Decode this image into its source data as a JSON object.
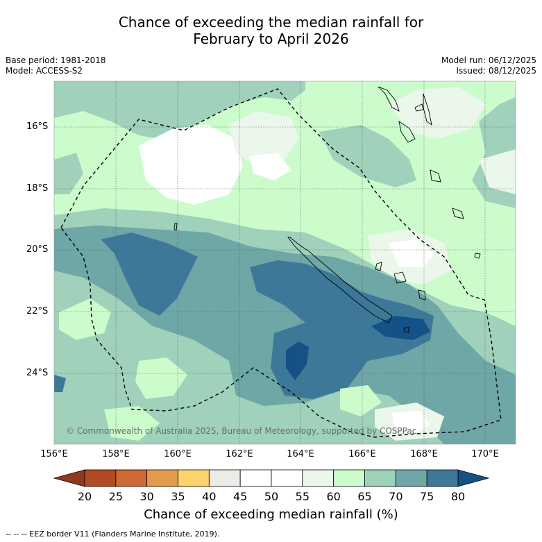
{
  "title_line1": "Chance of exceeding the median rainfall for",
  "title_line2": "February to April 2026",
  "base_period": "Base period: 1981-2018",
  "model": "Model: ACCESS-S2",
  "model_run": "Model run: 06/12/2025",
  "issued": "Issued: 08/12/2025",
  "lat_labels": [
    "16°S",
    "18°S",
    "20°S",
    "22°S",
    "24°S"
  ],
  "lon_labels": [
    "156°E",
    "158°E",
    "160°E",
    "162°E",
    "164°E",
    "166°E",
    "168°E",
    "170°E"
  ],
  "copyright": "© Commonwealth of Australia 2025, Bureau of Meteorology, supported by COSPPac",
  "colorbar": {
    "ticks": [
      "20",
      "25",
      "30",
      "35",
      "40",
      "45",
      "50",
      "55",
      "60",
      "65",
      "70",
      "75",
      "80"
    ],
    "title": "Chance of exceeding median rainfall (%)",
    "colors": [
      "#8e3a1e",
      "#b14a25",
      "#cf6a35",
      "#e49a4d",
      "#fdd36e",
      "#ecebe7",
      "#ffffff",
      "#ffffff",
      "#ecf7ec",
      "#ccfccc",
      "#9fd1bb",
      "#6fa6a6",
      "#3e7899",
      "#135186"
    ]
  },
  "legend_eez": "--  --  -- EEZ border V11 (Flanders Marine Institute, 2019)."
}
